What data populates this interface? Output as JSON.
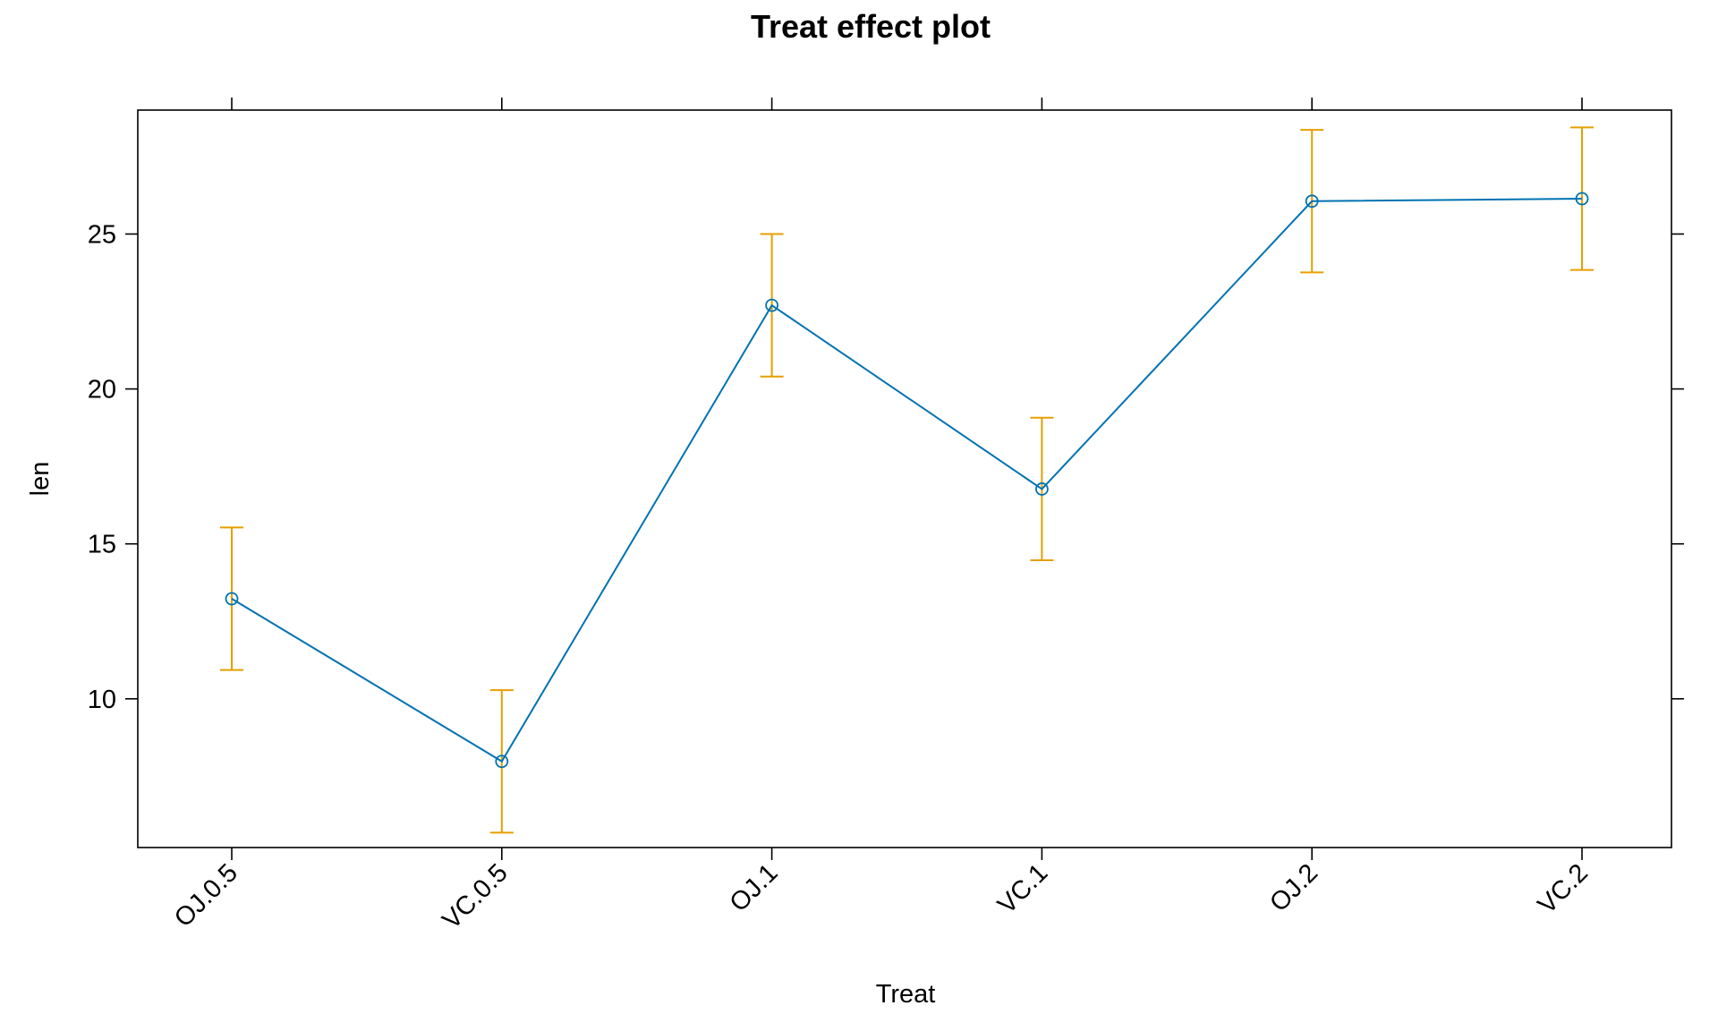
{
  "chart_data": {
    "type": "line",
    "title": "Treat effect plot",
    "xlabel": "Treat",
    "ylabel": "len",
    "categories": [
      "OJ.0.5",
      "VC.0.5",
      "OJ.1",
      "VC.1",
      "OJ.2",
      "VC.2"
    ],
    "series": [
      {
        "values": [
          13.23,
          7.98,
          22.7,
          16.77,
          26.06,
          26.14
        ],
        "lower": [
          10.93,
          5.68,
          20.4,
          14.47,
          23.76,
          23.84
        ],
        "upper": [
          15.53,
          10.28,
          25.0,
          19.07,
          28.36,
          28.44
        ]
      }
    ],
    "yticks": [
      10,
      15,
      20,
      25
    ],
    "ylim": [
      5.2,
      29.0
    ],
    "grid": false,
    "colors": {
      "line": "#0072b2",
      "errorbar": "#e69f00",
      "axis": "#000000"
    }
  }
}
